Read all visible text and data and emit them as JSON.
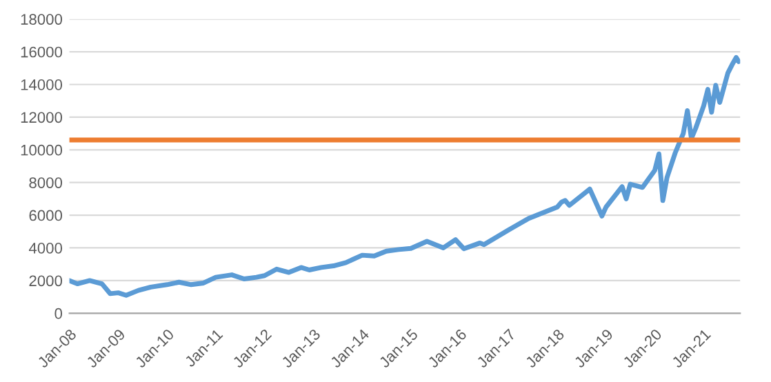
{
  "chart_data": {
    "type": "line",
    "x": [
      "2008-01",
      "2008-03",
      "2008-06",
      "2008-09",
      "2008-11",
      "2009-01",
      "2009-03",
      "2009-06",
      "2009-09",
      "2010-01",
      "2010-04",
      "2010-07",
      "2010-10",
      "2011-01",
      "2011-05",
      "2011-08",
      "2011-11",
      "2012-01",
      "2012-04",
      "2012-07",
      "2012-10",
      "2012-12",
      "2013-03",
      "2013-06",
      "2013-09",
      "2014-01",
      "2014-04",
      "2014-07",
      "2014-10",
      "2015-01",
      "2015-05",
      "2015-09",
      "2015-12",
      "2016-02",
      "2016-06",
      "2016-07",
      "2017-01",
      "2017-06",
      "2018-01",
      "2018-02",
      "2018-03",
      "2018-04",
      "2018-09",
      "2018-12",
      "2019-01",
      "2019-05",
      "2019-06",
      "2019-07",
      "2019-10",
      "2020-01",
      "2020-02",
      "2020-03",
      "2020-04",
      "2020-06",
      "2020-08",
      "2020-09",
      "2020-10",
      "2020-11",
      "2021-01",
      "2021-02",
      "2021-03",
      "2021-04",
      "2021-05",
      "2021-07",
      "2021-08",
      "2021-09",
      "2021-09-20"
    ],
    "series": [
      {
        "color": "#5b9bd5",
        "values": [
          2000,
          1800,
          2000,
          1800,
          1200,
          1250,
          1100,
          1400,
          1600,
          1750,
          1900,
          1750,
          1850,
          2200,
          2350,
          2100,
          2200,
          2300,
          2700,
          2500,
          2800,
          2650,
          2800,
          2900,
          3100,
          3550,
          3500,
          3800,
          3900,
          3970,
          4400,
          4000,
          4500,
          3950,
          4300,
          4200,
          5100,
          5800,
          6500,
          6800,
          6900,
          6600,
          7600,
          5950,
          6500,
          7750,
          7000,
          7900,
          7700,
          8750,
          9750,
          6900,
          8300,
          9800,
          11000,
          12400,
          10700,
          11300,
          12700,
          13700,
          12300,
          13950,
          12900,
          14700,
          15200,
          15650,
          15400
        ]
      }
    ],
    "xlim": [
      "2008-01",
      "2021-10"
    ],
    "xticks": [
      {
        "value": "2008-01",
        "label": "Jan-08"
      },
      {
        "value": "2009-01",
        "label": "Jan-09"
      },
      {
        "value": "2010-01",
        "label": "Jan-10"
      },
      {
        "value": "2011-01",
        "label": "Jan-11"
      },
      {
        "value": "2012-01",
        "label": "Jan-12"
      },
      {
        "value": "2013-01",
        "label": "Jan-13"
      },
      {
        "value": "2014-01",
        "label": "Jan-14"
      },
      {
        "value": "2015-01",
        "label": "Jan-15"
      },
      {
        "value": "2016-01",
        "label": "Jan-16"
      },
      {
        "value": "2017-01",
        "label": "Jan-17"
      },
      {
        "value": "2018-01",
        "label": "Jan-18"
      },
      {
        "value": "2019-01",
        "label": "Jan-19"
      },
      {
        "value": "2020-01",
        "label": "Jan-20"
      },
      {
        "value": "2021-01",
        "label": "Jan-21"
      }
    ],
    "ylim": [
      0,
      18000
    ],
    "yticks": [
      0,
      2000,
      4000,
      6000,
      8000,
      10000,
      12000,
      14000,
      16000,
      18000
    ],
    "ref_lines": [
      {
        "axis": "y",
        "value": 10600,
        "color": "#ed7d31"
      }
    ],
    "grid": "y",
    "legend": false,
    "marker": "none",
    "line_style": "solid"
  }
}
